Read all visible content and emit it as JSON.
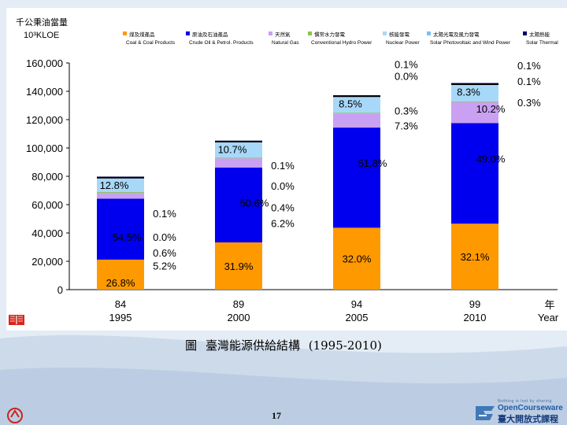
{
  "chart_data": {
    "type": "bar",
    "stacked": true,
    "yaxis_title_line1": "千公秉油當量",
    "yaxis_unit": "10³KLOE",
    "categories": [
      {
        "roc": "84",
        "year": "1995"
      },
      {
        "roc": "89",
        "year": "2000"
      },
      {
        "roc": "94",
        "year": "2005"
      },
      {
        "roc": "99",
        "year": "2010"
      }
    ],
    "xaxis_title_zh": "年",
    "xaxis_title_en": "Year",
    "ylim": [
      0,
      160000
    ],
    "yticks": [
      "0",
      "20,000",
      "40,000",
      "60,000",
      "80,000",
      "100,000",
      "120,000",
      "140,000",
      "160,000"
    ],
    "totals": [
      79000,
      104500,
      136500,
      145000
    ],
    "series": [
      {
        "zh": "煤及煤產品",
        "en": "Coal & Coal Products",
        "color": "#ff9900",
        "shares": [
          26.8,
          31.9,
          32.0,
          32.1
        ],
        "labels": [
          "26.8%",
          "31.9%",
          "32.0%",
          "32.1%"
        ]
      },
      {
        "zh": "原油及石油產品",
        "en": "Crude Oil & Petrol. Products",
        "color": "#0000ee",
        "shares": [
          54.5,
          50.6,
          51.8,
          49.0
        ],
        "labels": [
          "54.5%",
          "50.6%",
          "51.8%",
          "49.0%"
        ]
      },
      {
        "zh": "天然氣",
        "en": "Natural Gas",
        "color": "#c9a0f2",
        "shares": [
          5.2,
          6.2,
          7.3,
          10.2
        ],
        "labels": [
          "5.2%",
          "6.2%",
          "7.3%",
          "10.2%"
        ]
      },
      {
        "zh": "慣常水力發電",
        "en": "Conventional Hydro Power",
        "color": "#8bc34a",
        "shares": [
          0.6,
          0.4,
          0.3,
          0.3
        ],
        "labels": [
          "0.6%",
          "0.4%",
          "0.3%",
          "0.3%"
        ]
      },
      {
        "zh": "核能發電",
        "en": "Nuclear Power",
        "color": "#a8d8f8",
        "shares": [
          12.8,
          10.7,
          8.5,
          8.3
        ],
        "labels": [
          "12.8%",
          "10.7%",
          "8.5%",
          "8.3%"
        ]
      },
      {
        "zh": "太陽光電及風力發電",
        "en": "Solar Photovoltaic and Wind Power",
        "color": "#7fbfef",
        "shares": [
          0.0,
          0.0,
          0.0,
          0.1
        ],
        "labels": [
          "0.0%",
          "0.0%",
          "0.0%",
          "0.1%"
        ]
      },
      {
        "zh": "太陽熱能",
        "en": "Solar Thermal",
        "color": "#00006a",
        "shares": [
          0.1,
          0.1,
          0.1,
          0.1
        ],
        "labels": [
          "0.1%",
          "0.1%",
          "0.1%",
          "0.1%"
        ]
      }
    ]
  },
  "caption": {
    "label": "圖",
    "title": "臺灣能源供給結構",
    "years": "(1995-2010)"
  },
  "page_number": "17",
  "ocw": {
    "tagline": "Nothing is lost by sharing",
    "name": "OpenCourseware",
    "school": "臺大開放式課程"
  }
}
